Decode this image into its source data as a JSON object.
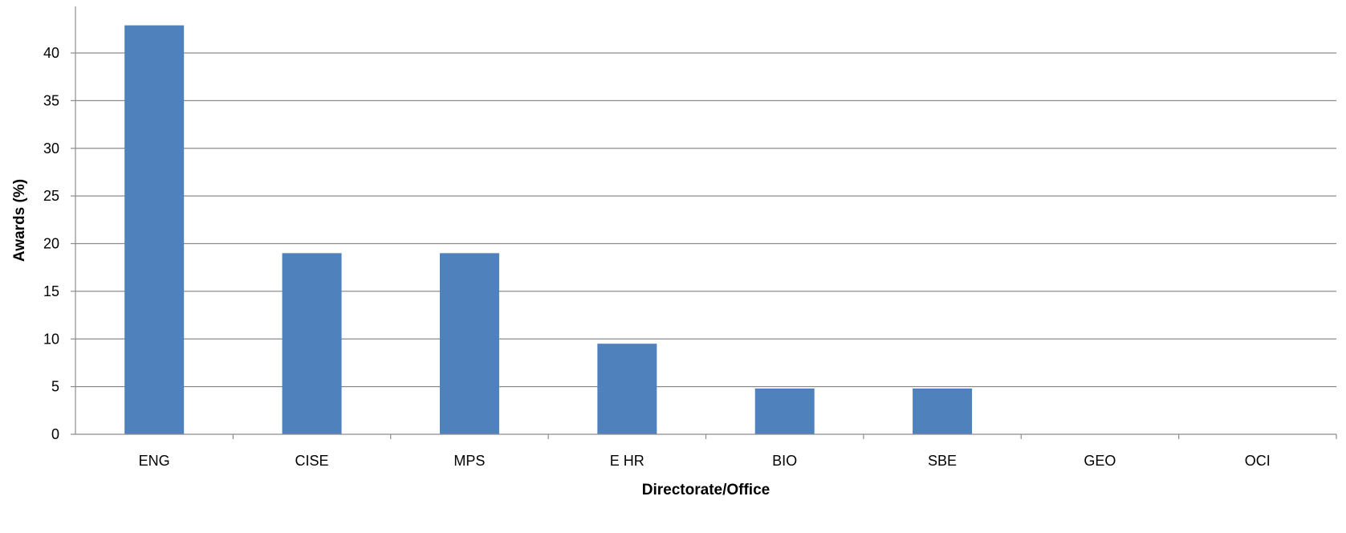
{
  "chart_data": {
    "type": "bar",
    "title": "",
    "xlabel": "Directorate/Office",
    "ylabel": "Awards (%)",
    "categories": [
      "ENG",
      "CISE",
      "MPS",
      "E HR",
      "BIO",
      "SBE",
      "GEO",
      "OCI"
    ],
    "values": [
      42.9,
      19.0,
      19.0,
      9.5,
      4.8,
      4.8,
      0,
      0
    ],
    "ylim": [
      0,
      45
    ],
    "yticks": [
      0,
      5,
      10,
      15,
      20,
      25,
      30,
      35,
      40
    ],
    "grid": true,
    "legend": "none",
    "bar_color": "#4f81bd"
  }
}
